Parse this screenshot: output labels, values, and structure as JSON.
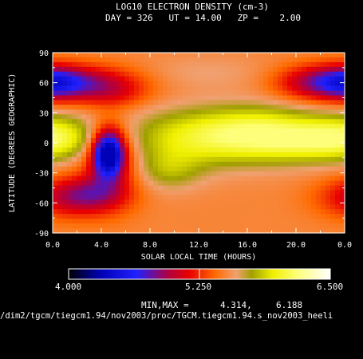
{
  "chart_data": {
    "type": "heatmap",
    "title": "LOG10 ELECTRON DENSITY (cm-3)",
    "subtitle": "DAY = 326   UT = 14.00   ZP =    2.00",
    "xlabel": "SOLAR LOCAL TIME (HOURS)",
    "ylabel": "LATITUDE (DEGREES GEOGRAPHIC)",
    "xlim": [
      0,
      24
    ],
    "ylim": [
      -90,
      90
    ],
    "x_ticks": [
      "0.0",
      "4.0",
      "8.0",
      "12.0",
      "16.0",
      "20.0",
      "0.0"
    ],
    "y_ticks": [
      "90",
      "60",
      "30",
      "0",
      "-30",
      "-60",
      "-90"
    ],
    "colorbar": {
      "min": 4.0,
      "max": 6.5,
      "labels": [
        "4.000",
        "5.250",
        "6.500"
      ],
      "stops": [
        {
          "v": 4.0,
          "color": "#000000"
        },
        {
          "v": 4.3,
          "color": "#0000b4"
        },
        {
          "v": 4.65,
          "color": "#2020ff"
        },
        {
          "v": 4.95,
          "color": "#b00040"
        },
        {
          "v": 5.15,
          "color": "#e80000"
        },
        {
          "v": 5.4,
          "color": "#ff6a00"
        },
        {
          "v": 5.6,
          "color": "#f0a070"
        },
        {
          "v": 5.75,
          "color": "#a0a000"
        },
        {
          "v": 5.95,
          "color": "#f0f000"
        },
        {
          "v": 6.2,
          "color": "#ffff80"
        },
        {
          "v": 6.5,
          "color": "#ffffff"
        }
      ]
    },
    "min_value": 4.314,
    "max_value": 6.188,
    "blobs": [
      {
        "lt": 12.0,
        "lat": 5,
        "slt": 4.5,
        "slat": 20,
        "amp": 0.45
      },
      {
        "lt": 17.5,
        "lat": 10,
        "slt": 3.5,
        "slat": 18,
        "amp": 0.45
      },
      {
        "lt": 20.5,
        "lat": 0,
        "slt": 2.5,
        "slat": 14,
        "amp": 0.25
      },
      {
        "lt": 1.0,
        "lat": 5,
        "slt": 2.5,
        "slat": 15,
        "amp": 0.3
      },
      {
        "lt": 23.5,
        "lat": 5,
        "slt": 2.0,
        "slat": 15,
        "amp": 0.25
      },
      {
        "lt": 9.5,
        "lat": -28,
        "slt": 2.0,
        "slat": 14,
        "amp": 0.25
      },
      {
        "lt": 12.5,
        "lat": 70,
        "slt": 4.0,
        "slat": 12,
        "amp": 0.1
      },
      {
        "lt": 4.6,
        "lat": -10,
        "slt": 0.9,
        "slat": 16,
        "amp": -1.25
      },
      {
        "lt": 4.8,
        "lat": -20,
        "slt": 1.7,
        "slat": 28,
        "amp": -0.35
      },
      {
        "lt": 2.5,
        "lat": 60,
        "slt": 3.2,
        "slat": 12,
        "amp": -0.55
      },
      {
        "lt": 5.0,
        "lat": 48,
        "slt": 2.0,
        "slat": 10,
        "amp": -0.2
      },
      {
        "lt": 22.0,
        "lat": 60,
        "slt": 2.5,
        "slat": 12,
        "amp": -0.55
      },
      {
        "lt": 0.3,
        "lat": 60,
        "slt": 1.5,
        "slat": 12,
        "amp": -0.3
      },
      {
        "lt": 1.5,
        "lat": -55,
        "slt": 2.5,
        "slat": 14,
        "amp": -0.45
      },
      {
        "lt": 3.5,
        "lat": -50,
        "slt": 2.0,
        "slat": 12,
        "amp": -0.25
      }
    ],
    "background_value": 5.5
  },
  "footer": {
    "minmax_label": "MIN,MAX =",
    "min_text": "4.314,",
    "max_text": "6.188",
    "file_path": "/dim2/tgcm/tiegcm1.94/nov2003/proc/TGCM.tiegcm1.94.s_nov2003_heeli"
  }
}
